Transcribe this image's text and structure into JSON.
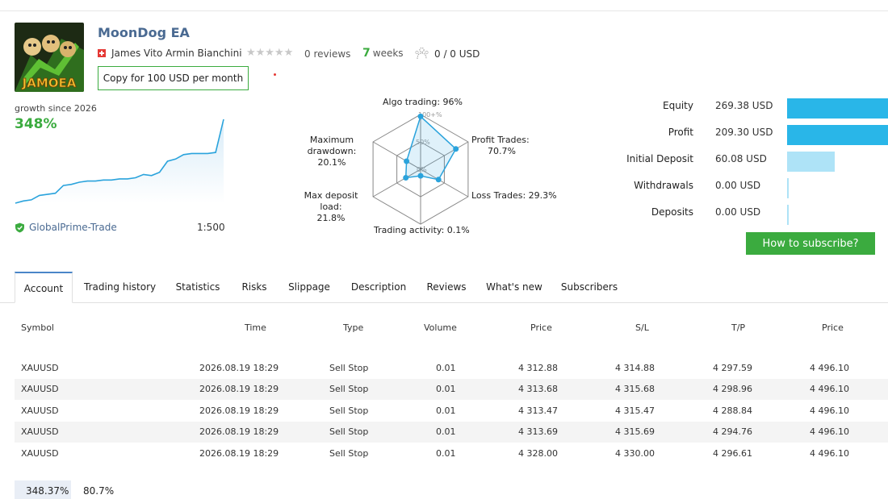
{
  "header": {
    "title": "MoonDog EA",
    "avatar_text": "JAMOEA",
    "author": "James Vito Armin Bianchini",
    "stars": "★★★★★",
    "reviews": "0 reviews",
    "weeks_num": "7",
    "weeks_label": "weeks",
    "subscribers": "0 / 0 USD",
    "copy_button": "Copy for 100 USD per month"
  },
  "growth": {
    "label": "growth since 2026",
    "value": "348%",
    "broker": "GlobalPrime-Trade",
    "leverage": "1:500",
    "curve": [
      2,
      4,
      5,
      9,
      10,
      11,
      18,
      19,
      21,
      22,
      22,
      23,
      23,
      24,
      24,
      25,
      28,
      27,
      30,
      40,
      42,
      46,
      47,
      47,
      47,
      48,
      78
    ]
  },
  "radar": {
    "algo_trading": "Algo trading: 96%",
    "profit_trades_1": "Profit Trades:",
    "profit_trades_2": "70.7%",
    "loss_trades": "Loss Trades: 29.3%",
    "trading_activity": "Trading activity: 0.1%",
    "max_deposit_1": "Max deposit load:",
    "max_deposit_2": "21.8%",
    "max_drawdown_1": "Maximum",
    "max_drawdown_2": "drawdown: 20.1%",
    "tick_100": "100+%",
    "tick_50": "50%",
    "tick_0": "0%",
    "values": [
      96,
      70.7,
      29.3,
      0.1,
      21.8,
      20.1
    ]
  },
  "balance": {
    "rows": [
      {
        "label": "Equity",
        "value": "269.38 USD",
        "fraction": 1.0,
        "color": "#29b6e8"
      },
      {
        "label": "Profit",
        "value": "209.30 USD",
        "fraction": 1.0,
        "color": "#29b6e8"
      },
      {
        "label": "Initial Deposit",
        "value": "60.08 USD",
        "fraction": 0.47,
        "color": "#aee3f7"
      },
      {
        "label": "Withdrawals",
        "value": "0.00 USD",
        "fraction": 0.01,
        "color": "#aee3f7"
      },
      {
        "label": "Deposits",
        "value": "0.00 USD",
        "fraction": 0.01,
        "color": "#aee3f7"
      }
    ],
    "subscribe_button": "How to subscribe?"
  },
  "tabs": [
    "Account",
    "Trading history",
    "Statistics",
    "Risks",
    "Slippage",
    "Description",
    "Reviews",
    "What's new",
    "Subscribers"
  ],
  "table": {
    "headers": [
      "Symbol",
      "Time",
      "Type",
      "Volume",
      "Price",
      "S/L",
      "T/P",
      "Price"
    ],
    "rows": [
      [
        "XAUUSD",
        "2026.08.19 18:29",
        "Sell Stop",
        "0.01",
        "4 312.88",
        "4 314.88",
        "4 297.59",
        "4 496.10"
      ],
      [
        "XAUUSD",
        "2026.08.19 18:29",
        "Sell Stop",
        "0.01",
        "4 313.68",
        "4 315.68",
        "4 298.96",
        "4 496.10"
      ],
      [
        "XAUUSD",
        "2026.08.19 18:29",
        "Sell Stop",
        "0.01",
        "4 313.47",
        "4 315.47",
        "4 288.84",
        "4 496.10"
      ],
      [
        "XAUUSD",
        "2026.08.19 18:29",
        "Sell Stop",
        "0.01",
        "4 313.69",
        "4 315.69",
        "4 294.76",
        "4 496.10"
      ],
      [
        "XAUUSD",
        "2026.08.19 18:29",
        "Sell Stop",
        "0.01",
        "4 328.00",
        "4 330.00",
        "4 296.61",
        "4 496.10"
      ]
    ]
  },
  "footer": {
    "growth_pct": "348.37%",
    "second_pct": "80.7%"
  }
}
